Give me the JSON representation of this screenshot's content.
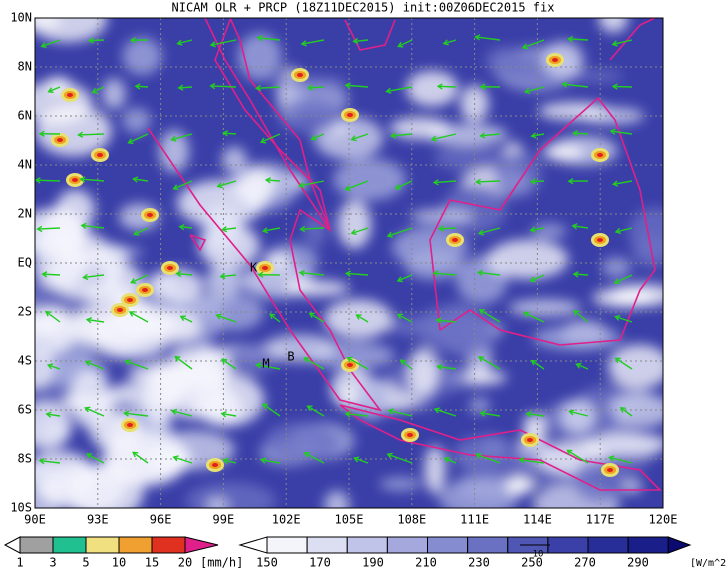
{
  "title": "NICAM OLR + PRCP (18Z11DEC2015) init:00Z06DEC2015 fix",
  "map": {
    "lat_labels": [
      "10N",
      "8N",
      "6N",
      "4N",
      "2N",
      "EQ",
      "2S",
      "4S",
      "6S",
      "8S",
      "10S"
    ],
    "lon_labels": [
      "90E",
      "93E",
      "96E",
      "99E",
      "102E",
      "105E",
      "108E",
      "111E",
      "114E",
      "117E",
      "120E"
    ],
    "markers": [
      "K",
      "M",
      "B"
    ]
  },
  "precip_legend": {
    "labels": [
      "1",
      "3",
      "5",
      "10",
      "15",
      "20"
    ],
    "unit": "[mm/h]"
  },
  "olr_legend": {
    "labels": [
      "150",
      "170",
      "190",
      "210",
      "230",
      "250",
      "270",
      "290"
    ],
    "unit": "[W/m^2]",
    "vector_ref": "10"
  }
}
